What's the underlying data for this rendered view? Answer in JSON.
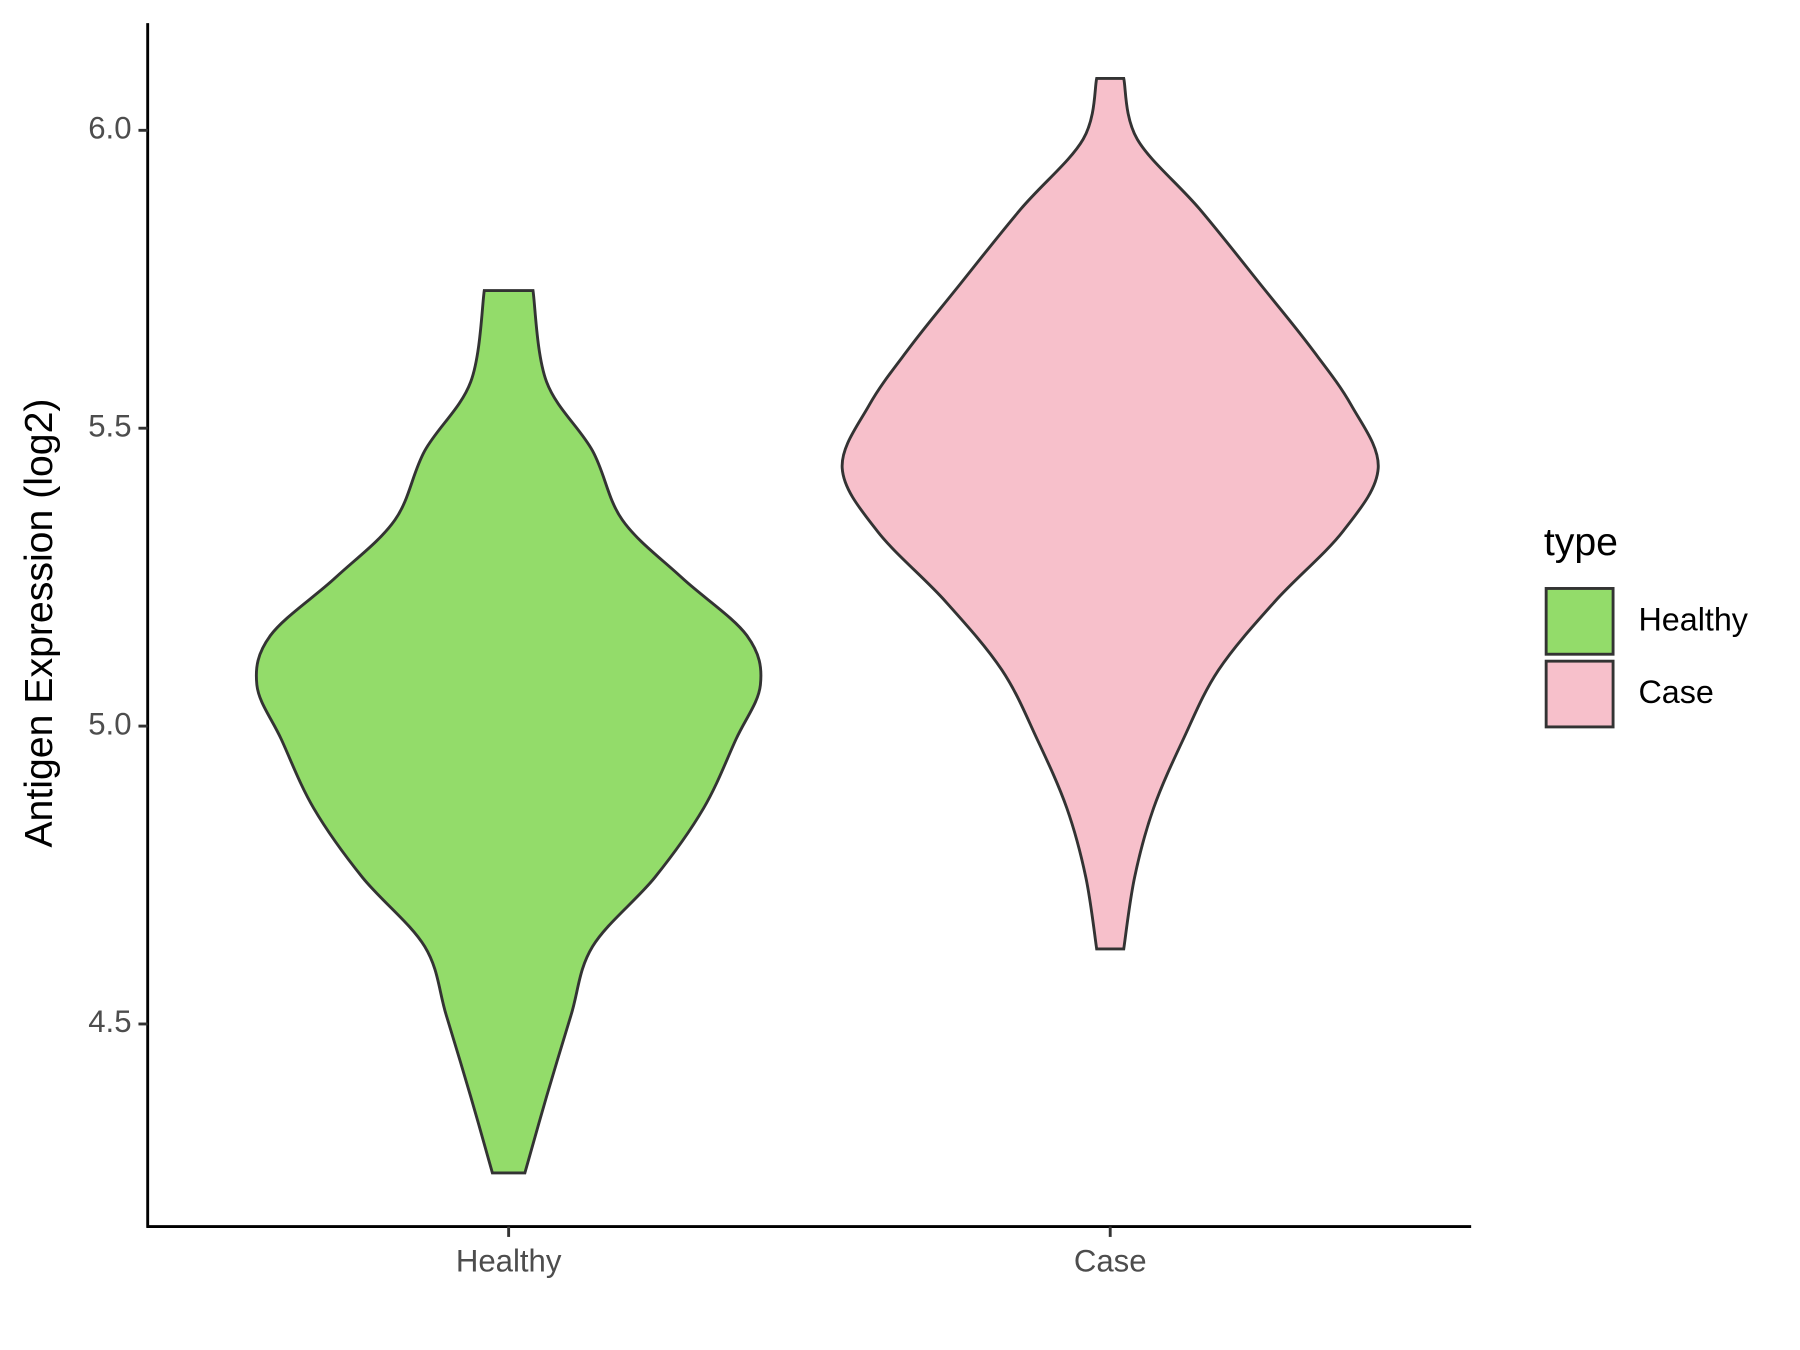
{
  "chart_data": {
    "type": "violin",
    "y_label": "Antigen Expression (log2)",
    "categories": [
      "Healthy",
      "Case"
    ],
    "legend_title": "type",
    "legend_position": "right",
    "series": [
      {
        "name": "Healthy",
        "color": "#93dc6a",
        "values": [
          5.731,
          5.578,
          5.462,
          5.346,
          5.249,
          5.152,
          5.069,
          4.978,
          4.862,
          4.746,
          4.63,
          4.514,
          4.378,
          4.25
        ],
        "widths": [
          0.09,
          0.14,
          0.31,
          0.42,
          0.64,
          0.88,
          0.93,
          0.84,
          0.72,
          0.54,
          0.31,
          0.23,
          0.14,
          0.06
        ]
      },
      {
        "name": "Case",
        "color": "#f7c0cb",
        "values": [
          6.087,
          5.985,
          5.868,
          5.733,
          5.636,
          5.539,
          5.433,
          5.327,
          5.21,
          5.094,
          4.978,
          4.862,
          4.746,
          4.626
        ],
        "widths": [
          0.05,
          0.1,
          0.33,
          0.57,
          0.74,
          0.89,
          0.99,
          0.86,
          0.61,
          0.4,
          0.27,
          0.16,
          0.09,
          0.05
        ]
      }
    ],
    "ylim": [
      4.16,
      6.18
    ],
    "yticks": [
      4.5,
      {
        "value": 5,
        "label": "5.0"
      },
      5.5,
      {
        "value": 6,
        "label": "6.0"
      }
    ]
  }
}
